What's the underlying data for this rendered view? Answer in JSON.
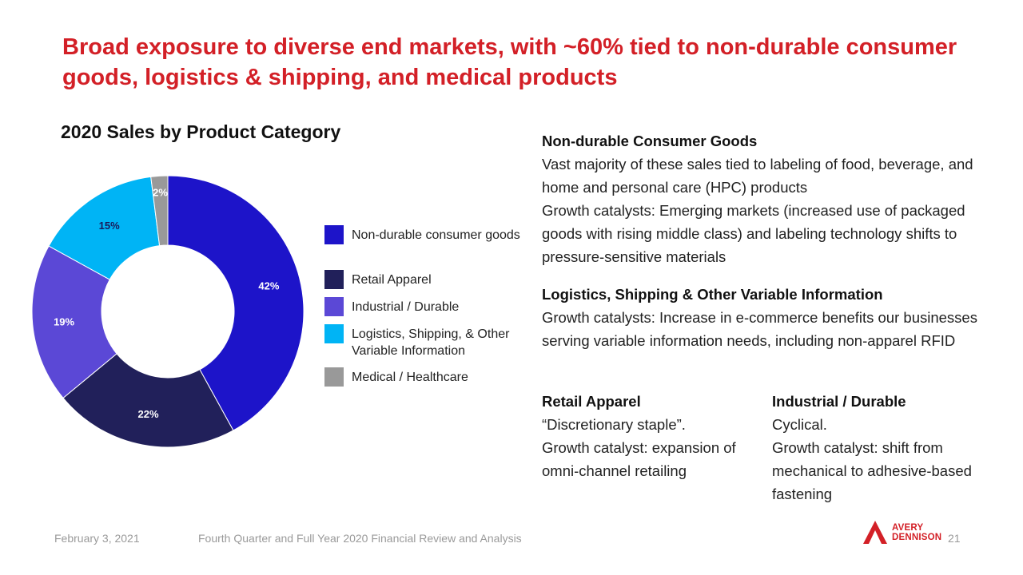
{
  "slide": {
    "title": "Broad exposure to diverse end markets, with ~60% tied to non-durable consumer goods, logistics & shipping, and medical products",
    "footer_date": "February 3, 2021",
    "footer_title": "Fourth Quarter and Full Year 2020 Financial Review and Analysis",
    "page_number": "21",
    "logo": {
      "line1": "AVERY",
      "line2": "DENNISON",
      "icon": "avery-dennison-logo-icon",
      "color": "#d32027"
    }
  },
  "chart_data": {
    "type": "pie",
    "variant": "donut",
    "title": "2020 Sales by Product Category",
    "unit": "%",
    "legend_position": "right",
    "slices": [
      {
        "label": "Non-durable consumer goods",
        "value": 42,
        "display": "42%",
        "color": "#1d14c9"
      },
      {
        "label": "Retail Apparel",
        "value": 22,
        "display": "22%",
        "color": "#21205a"
      },
      {
        "label": "Industrial / Durable",
        "value": 19,
        "display": "19%",
        "color": "#5b48d6"
      },
      {
        "label": "Logistics, Shipping, & Other Variable Information",
        "value": 15,
        "display": "15%",
        "color": "#00b4f5"
      },
      {
        "label": "Medical / Healthcare",
        "value": 2,
        "display": "2%",
        "color": "#999999"
      }
    ]
  },
  "commentary": {
    "nondurable": {
      "heading": "Non-durable Consumer Goods",
      "line1": "Vast majority of these sales tied to labeling of food, beverage, and home and personal care (HPC) products",
      "line2": "Growth catalysts: Emerging markets (increased use of packaged goods with rising middle class) and labeling technology shifts to pressure-sensitive materials"
    },
    "logistics": {
      "heading": "Logistics, Shipping & Other Variable Information",
      "line1": "Growth catalysts: Increase in e-commerce benefits our businesses serving variable information needs, including non-apparel RFID"
    },
    "apparel": {
      "heading": "Retail Apparel",
      "line1": "“Discretionary staple”.",
      "line2": "Growth catalyst: expansion of omni-channel retailing"
    },
    "industrial": {
      "heading": "Industrial / Durable",
      "line1": "Cyclical.",
      "line2": "Growth catalyst: shift from mechanical to adhesive-based fastening"
    }
  }
}
